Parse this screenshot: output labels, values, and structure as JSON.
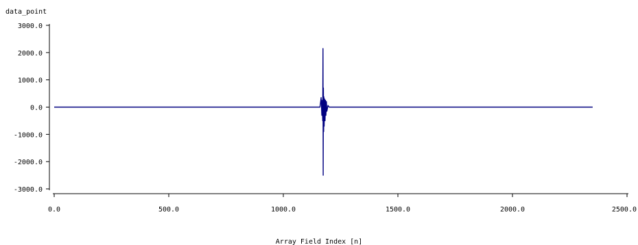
{
  "chart_data": {
    "type": "line",
    "title": "",
    "xlabel": "Array Field Index [n]",
    "ylabel": "data_point",
    "xlim": [
      0,
      2500
    ],
    "ylim": [
      -3000,
      3000
    ],
    "x_ticks": [
      0,
      500,
      1000,
      1500,
      2000,
      2500
    ],
    "y_ticks": [
      3000,
      2000,
      1000,
      0,
      -1000,
      -2000,
      -3000
    ],
    "x_tick_labels": [
      "0.0",
      "500.0",
      "1000.0",
      "1500.0",
      "2000.0",
      "2500.0"
    ],
    "y_tick_labels": [
      "3000.0",
      "2000.0",
      "1000.0",
      "0.0",
      "-1000.0",
      "-2000.0",
      "-3000.0"
    ],
    "grid": false,
    "series": [
      {
        "color": "#000080",
        "x": [
          0,
          200,
          400,
          600,
          800,
          1000,
          1100,
          1160,
          1165,
          1168,
          1170,
          1172,
          1173,
          1174,
          1175,
          1176,
          1177,
          1178,
          1180,
          1182,
          1184,
          1186,
          1188,
          1190,
          1195,
          1200,
          1300,
          1500,
          1700,
          1900,
          2100,
          2350
        ],
        "y": [
          0,
          0,
          0,
          0,
          0,
          0,
          0,
          0,
          350,
          -300,
          250,
          -500,
          2150,
          -2500,
          700,
          -900,
          380,
          -700,
          300,
          -500,
          250,
          -300,
          200,
          -150,
          60,
          0,
          0,
          0,
          0,
          0,
          0,
          0
        ]
      }
    ]
  }
}
